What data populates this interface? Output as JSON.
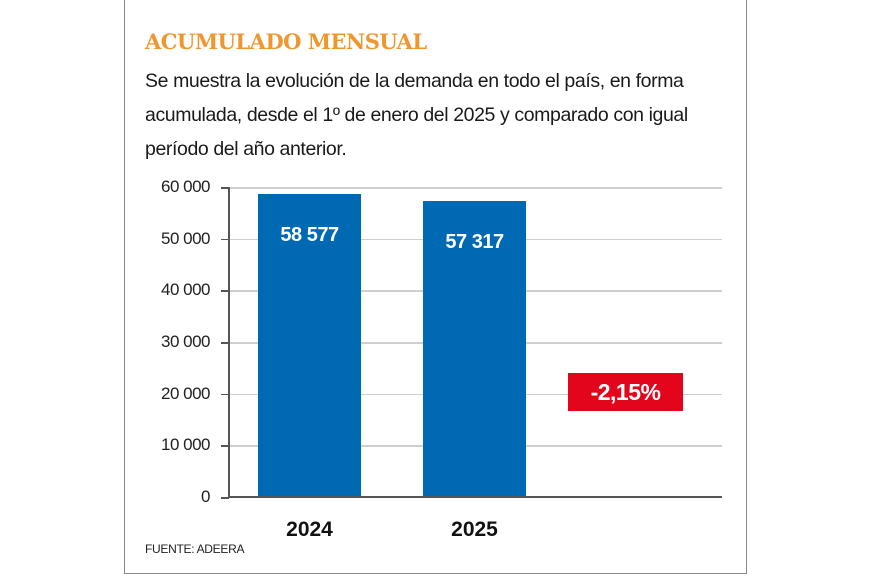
{
  "chart_data": {
    "type": "bar",
    "title": "ACUMULADO MENSUAL",
    "subtitle": "Se muestra la evolución de la demanda en todo el país, en forma acumulada, desde el 1º de enero del 2025 y comparado con igual período del año anterior.",
    "categories": [
      "2024",
      "2025"
    ],
    "values": [
      58577,
      57317
    ],
    "value_labels": [
      "58 577",
      "57 317"
    ],
    "ylim": [
      0,
      60000
    ],
    "yticks": [
      0,
      10000,
      20000,
      30000,
      40000,
      50000,
      60000
    ],
    "ytick_labels": [
      "0",
      "10 000",
      "20 000",
      "30 000",
      "40 000",
      "50 000",
      "60 000"
    ],
    "xlabel": "",
    "ylabel": "",
    "grid": true,
    "annotation": "-2,15%",
    "source": "FUENTE: ADEERA",
    "colors": {
      "bar": "#0069b4",
      "title": "#f0962e",
      "badge": "#e3051b"
    }
  }
}
